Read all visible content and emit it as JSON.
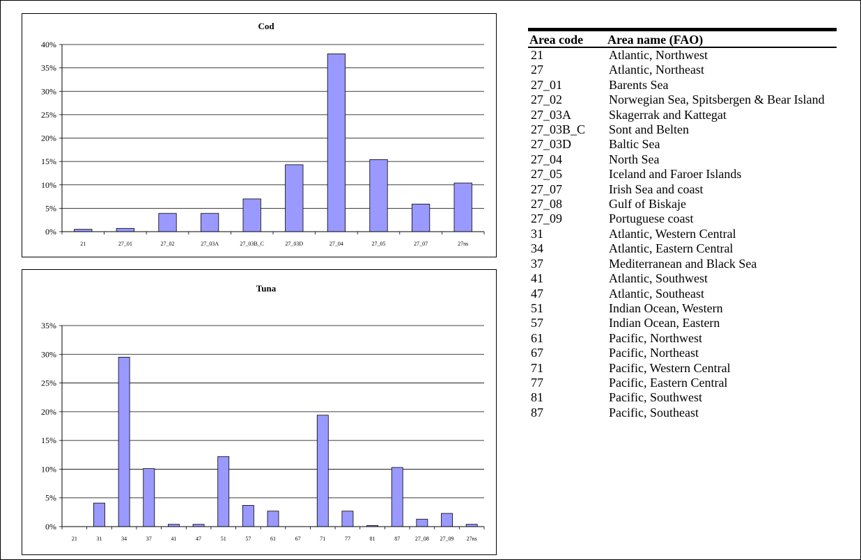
{
  "chart_data": [
    {
      "type": "bar",
      "title": "Cod",
      "categories": [
        "21",
        "27_01",
        "27_02",
        "27_03A",
        "27_03B_C",
        "27_03D",
        "27_04",
        "27_05",
        "27_07",
        "27ns"
      ],
      "values": [
        0.5,
        0.7,
        3.9,
        3.9,
        7.0,
        14.3,
        38.0,
        15.4,
        5.9,
        10.4
      ],
      "ylim": [
        0,
        40
      ],
      "yticks": [
        0,
        5,
        10,
        15,
        20,
        25,
        30,
        35,
        40
      ],
      "ytick_labels": [
        "0%",
        "5%",
        "10%",
        "15%",
        "20%",
        "25%",
        "30%",
        "35%",
        "40%"
      ],
      "bar_color": "#9999ff",
      "grid": true
    },
    {
      "type": "bar",
      "title": "Tuna",
      "categories": [
        "21",
        "31",
        "34",
        "37",
        "41",
        "47",
        "51",
        "57",
        "61",
        "67",
        "71",
        "77",
        "81",
        "87",
        "27_08",
        "27_09",
        "27ns"
      ],
      "values": [
        0,
        4.1,
        29.5,
        10.1,
        0.4,
        0.4,
        12.2,
        3.7,
        2.7,
        0,
        19.4,
        2.7,
        0.2,
        10.3,
        1.3,
        2.3,
        0.4
      ],
      "ylim": [
        0,
        35
      ],
      "yticks": [
        0,
        5,
        10,
        15,
        20,
        25,
        30,
        35
      ],
      "ytick_labels": [
        "0%",
        "5%",
        "10%",
        "15%",
        "20%",
        "25%",
        "30%",
        "35%"
      ],
      "bar_color": "#9999ff",
      "grid": true
    }
  ],
  "area_table": {
    "headers": [
      "Area code",
      "Area name (FAO)"
    ],
    "rows": [
      [
        "21",
        "Atlantic, Northwest"
      ],
      [
        "27",
        "Atlantic, Northeast"
      ],
      [
        "27_01",
        "Barents Sea"
      ],
      [
        "27_02",
        "Norwegian Sea, Spitsbergen & Bear Island"
      ],
      [
        "27_03A",
        "Skagerrak and Kattegat"
      ],
      [
        "27_03B_C",
        "Sont and Belten"
      ],
      [
        "27_03D",
        "Baltic Sea"
      ],
      [
        "27_04",
        "North Sea"
      ],
      [
        "27_05",
        "Iceland and Faroer Islands"
      ],
      [
        "27_07",
        "Irish Sea and coast"
      ],
      [
        "27_08",
        "Gulf of Biskaje"
      ],
      [
        "27_09",
        "Portuguese coast"
      ],
      [
        "31",
        "Atlantic, Western Central"
      ],
      [
        "34",
        "Atlantic, Eastern Central"
      ],
      [
        "37",
        "Mediterranean and Black Sea"
      ],
      [
        "41",
        "Atlantic, Southwest"
      ],
      [
        "47",
        "Atlantic, Southeast"
      ],
      [
        "51",
        "Indian Ocean, Western"
      ],
      [
        "57",
        "Indian Ocean, Eastern"
      ],
      [
        "61",
        "Pacific, Northwest"
      ],
      [
        "67",
        "Pacific, Northeast"
      ],
      [
        "71",
        "Pacific, Western Central"
      ],
      [
        "77",
        "Pacific, Eastern Central"
      ],
      [
        "81",
        "Pacific, Southwest"
      ],
      [
        "87",
        "Pacific, Southeast"
      ]
    ]
  }
}
